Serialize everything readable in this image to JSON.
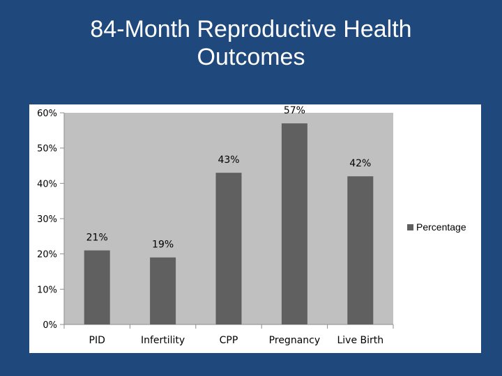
{
  "slide": {
    "title_line1": "84-Month Reproductive Health",
    "title_line2": "Outcomes"
  },
  "colors": {
    "background": "#1f497d",
    "plot_area": "#c0c0c0",
    "bar": "#606060",
    "title": "#ffffff"
  },
  "chart_data": {
    "type": "bar",
    "title": "",
    "xlabel": "",
    "ylabel": "",
    "categories": [
      "PID",
      "Infertility",
      "CPP",
      "Pregnancy",
      "Live Birth"
    ],
    "series": [
      {
        "name": "Percentage",
        "values": [
          21,
          19,
          43,
          57,
          42
        ]
      }
    ],
    "data_labels": [
      "21%",
      "19%",
      "43%",
      "57%",
      "42%"
    ],
    "ylim": [
      0,
      60
    ],
    "yticks": [
      0,
      10,
      20,
      30,
      40,
      50,
      60
    ],
    "ytick_labels": [
      "0%",
      "10%",
      "20%",
      "30%",
      "40%",
      "50%",
      "60%"
    ],
    "grid": false,
    "legend_position": "right"
  }
}
